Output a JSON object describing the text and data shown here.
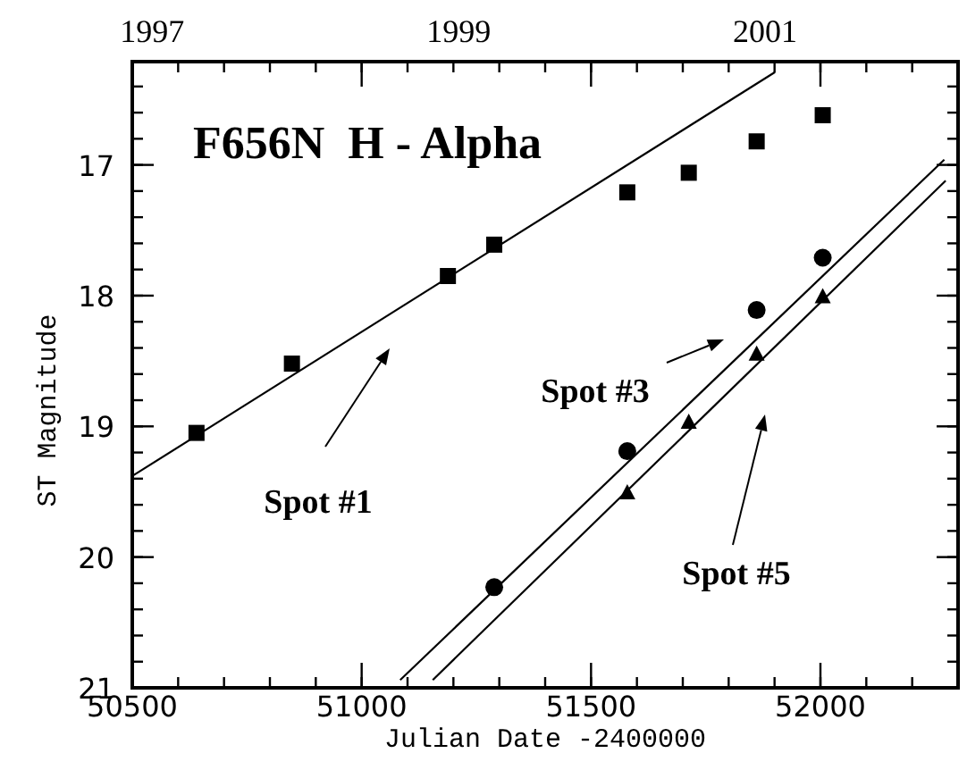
{
  "chart_data": {
    "type": "scatter",
    "title": "F656N  H - Alpha",
    "xlabel": "Julian Date -2400000",
    "ylabel": "ST Magnitude",
    "xlim": [
      50500,
      52300
    ],
    "xticks": [
      50500,
      51000,
      51500,
      52000
    ],
    "x2lim": [
      1996.87,
      2002.26
    ],
    "x2ticks": [
      1997,
      1999,
      2001
    ],
    "ylim": [
      21,
      16.21
    ],
    "yticks": [
      17,
      18,
      19,
      20,
      21
    ],
    "grid": false,
    "series": [
      {
        "marker": "square",
        "color": "#000000",
        "x": [
          50640,
          50848,
          51188,
          51289,
          51579,
          51713,
          51861,
          52005
        ],
        "values": [
          19.05,
          18.52,
          17.85,
          17.61,
          17.21,
          17.06,
          16.82,
          16.62
        ]
      },
      {
        "marker": "circle",
        "color": "#000000",
        "x": [
          51289,
          51579,
          51861,
          52005
        ],
        "values": [
          20.23,
          19.19,
          18.11,
          17.71
        ]
      },
      {
        "marker": "triangle",
        "color": "#000000",
        "x": [
          51579,
          51713,
          51861,
          52005
        ],
        "values": [
          19.51,
          18.97,
          18.45,
          18.01
        ]
      },
      {
        "type": "line",
        "marker": "none",
        "color": "#000000",
        "x": [
          50500,
          51901
        ],
        "values": [
          19.38,
          16.29
        ]
      },
      {
        "type": "line",
        "marker": "none",
        "color": "#000000",
        "x": [
          51084,
          52270
        ],
        "values": [
          20.94,
          16.96
        ]
      },
      {
        "type": "line",
        "marker": "none",
        "color": "#000000",
        "x": [
          51155,
          52273
        ],
        "values": [
          20.94,
          17.12
        ]
      }
    ],
    "annotations": [
      "Spot #1",
      "Spot #3",
      "Spot #5"
    ]
  }
}
